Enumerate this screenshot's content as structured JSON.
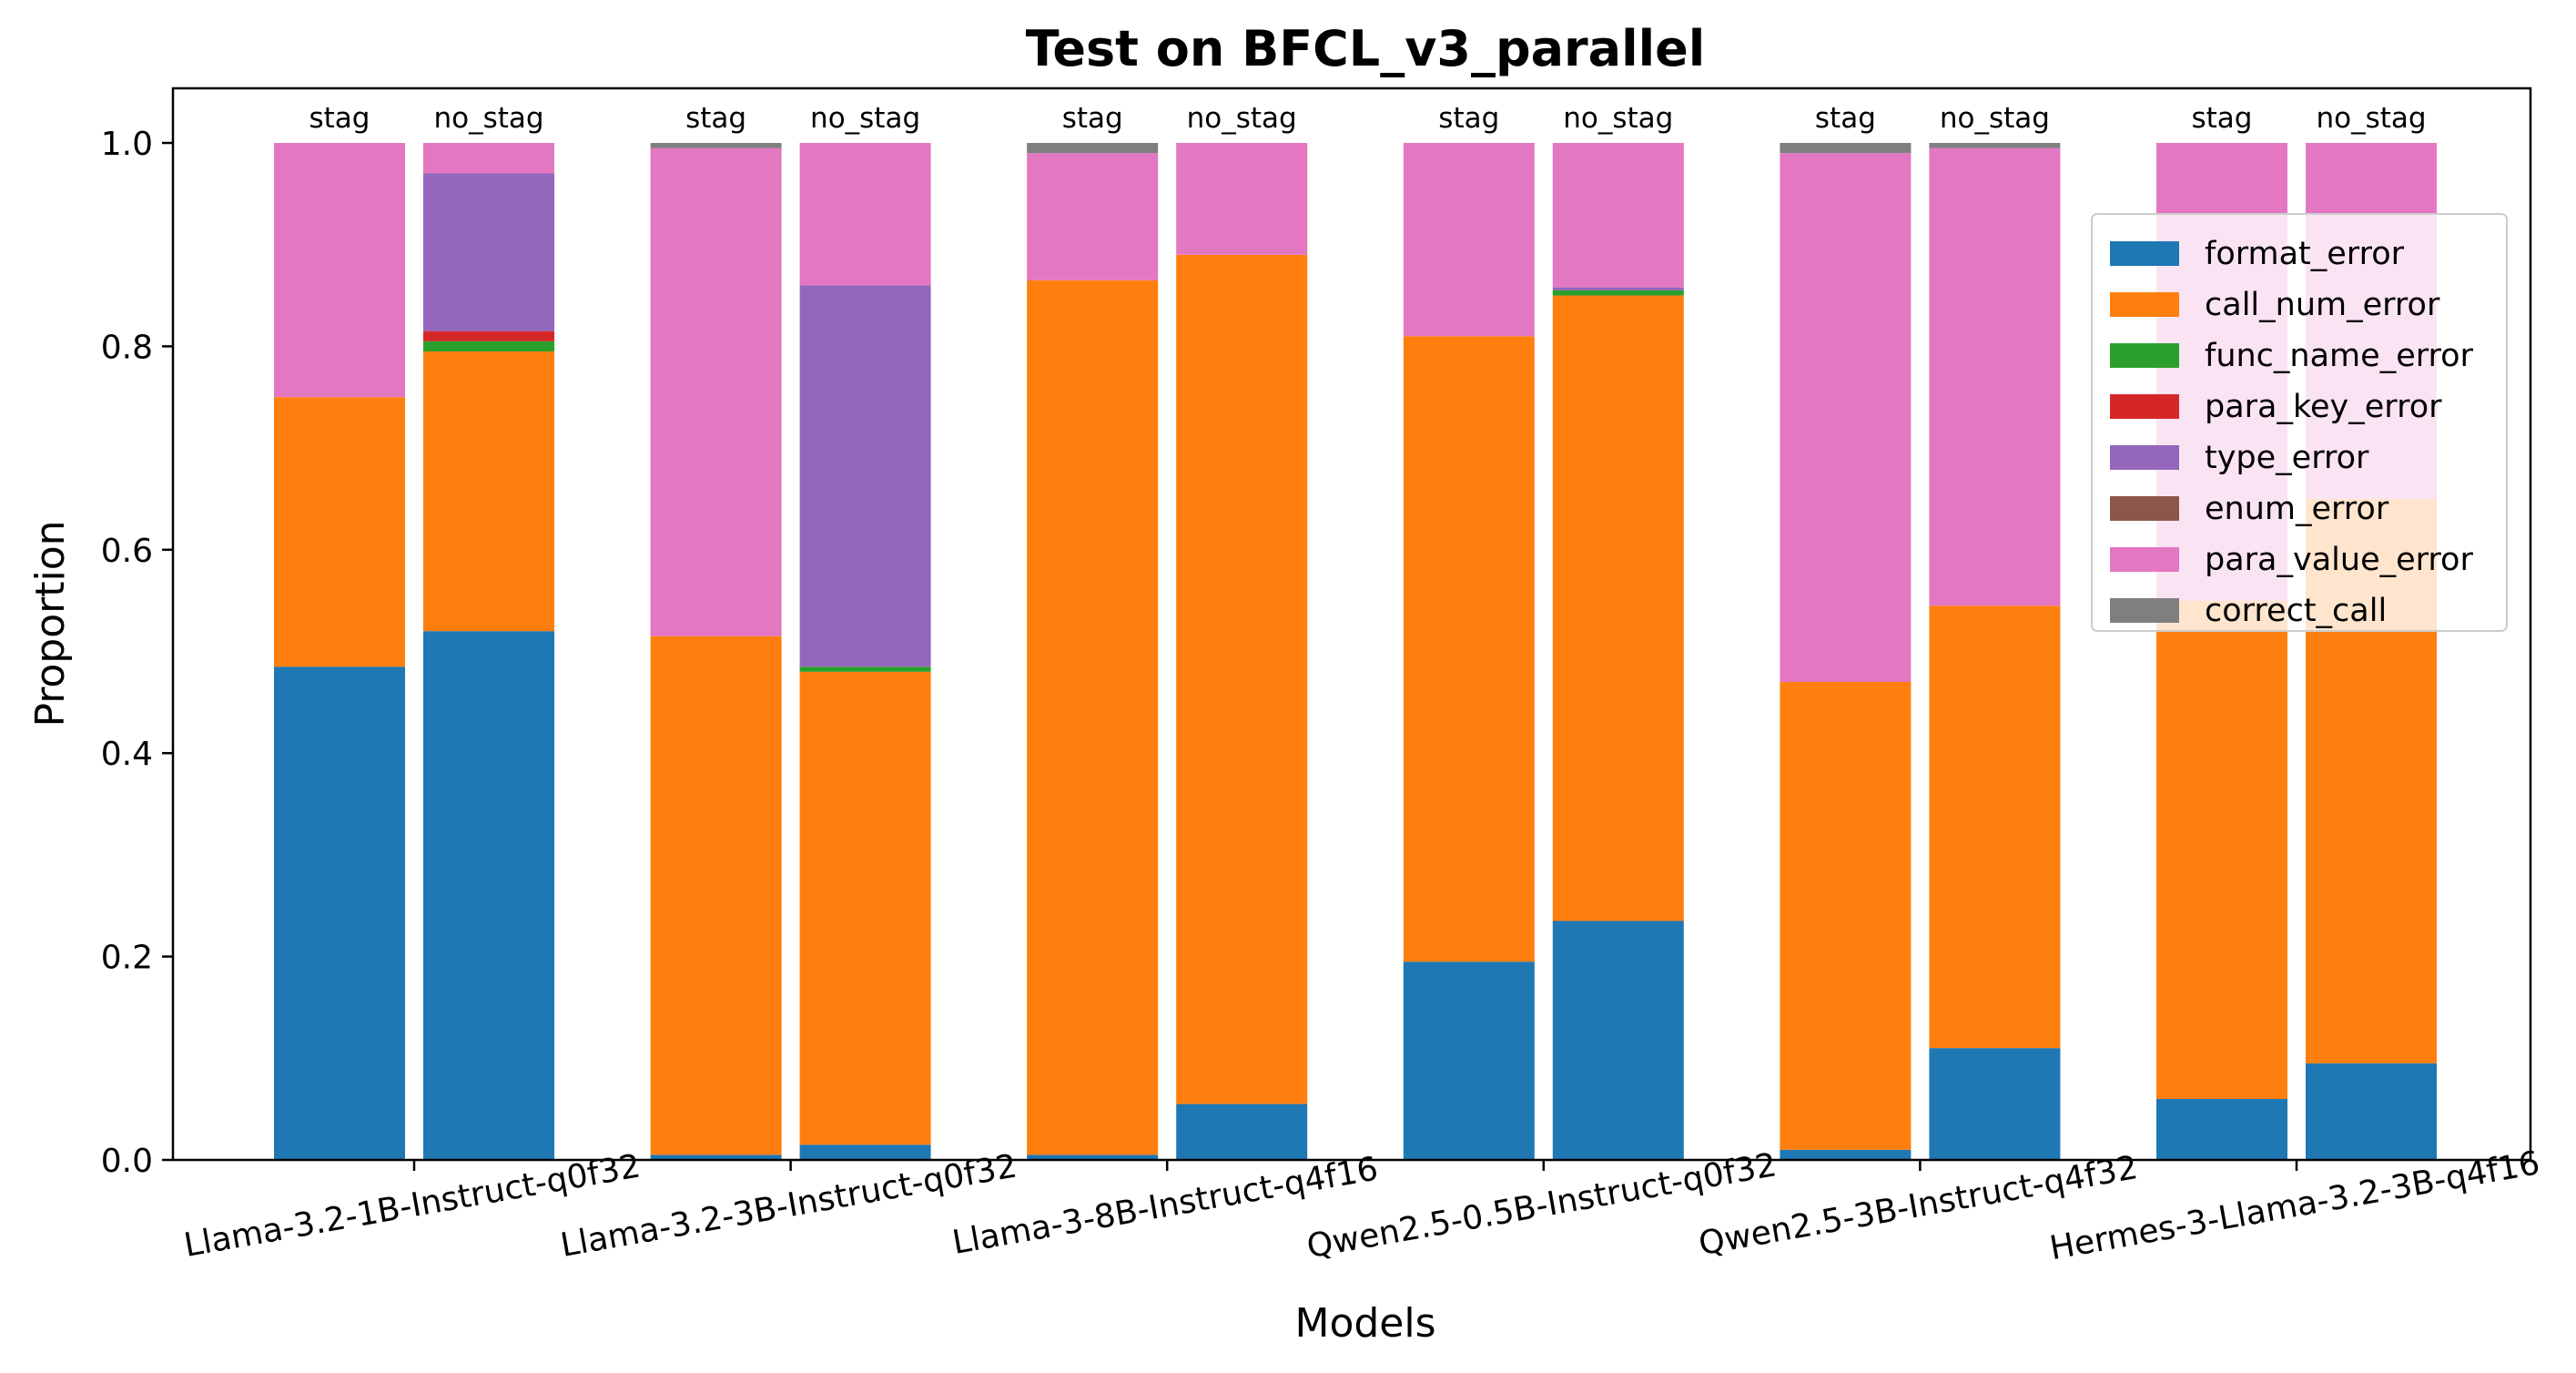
{
  "chart_data": {
    "type": "bar",
    "stacked": true,
    "title": "Test on BFCL_v3_parallel",
    "xlabel": "Models",
    "ylabel": "Proportion",
    "ylim": [
      0,
      1.05
    ],
    "yticks": [
      "0.0",
      "0.2",
      "0.4",
      "0.6",
      "0.8",
      "1.0"
    ],
    "grid": false,
    "legend_position": "top-right",
    "categories": [
      "Llama-3.2-1B-Instruct-q0f32",
      "Llama-3.2-3B-Instruct-q0f32",
      "Llama-3-8B-Instruct-q4f16",
      "Qwen2.5-0.5B-Instruct-q0f32",
      "Qwen2.5-3B-Instruct-q4f32",
      "Hermes-3-Llama-3.2-3B-q4f16"
    ],
    "bar_labels": [
      "stag",
      "no_stag"
    ],
    "series": [
      {
        "name": "format_error",
        "color": "#1f77b4",
        "stag": [
          0.485,
          0.005,
          0.005,
          0.195,
          0.01,
          0.06
        ],
        "no_stag": [
          0.52,
          0.015,
          0.055,
          0.235,
          0.11,
          0.095
        ]
      },
      {
        "name": "call_num_error",
        "color": "#ff7f0e",
        "stag": [
          0.265,
          0.51,
          0.86,
          0.615,
          0.46,
          0.49
        ],
        "no_stag": [
          0.275,
          0.465,
          0.835,
          0.615,
          0.435,
          0.555
        ]
      },
      {
        "name": "func_name_error",
        "color": "#2ca02c",
        "stag": [
          0,
          0,
          0,
          0,
          0,
          0
        ],
        "no_stag": [
          0.01,
          0.005,
          0,
          0.005,
          0,
          0
        ]
      },
      {
        "name": "para_key_error",
        "color": "#d62728",
        "stag": [
          0,
          0,
          0,
          0,
          0,
          0
        ],
        "no_stag": [
          0.01,
          0,
          0,
          0,
          0,
          0
        ]
      },
      {
        "name": "type_error",
        "color": "#9467bd",
        "stag": [
          0,
          0,
          0,
          0,
          0,
          0
        ],
        "no_stag": [
          0.155,
          0.375,
          0,
          0.003,
          0,
          0
        ]
      },
      {
        "name": "enum_error",
        "color": "#8c564b",
        "stag": [
          0,
          0,
          0,
          0,
          0,
          0
        ],
        "no_stag": [
          0,
          0,
          0,
          0,
          0,
          0
        ]
      },
      {
        "name": "para_value_error",
        "color": "#e377c2",
        "stag": [
          0.25,
          0.48,
          0.125,
          0.19,
          0.52,
          0.45
        ],
        "no_stag": [
          0.03,
          0.14,
          0.11,
          0.142,
          0.45,
          0.35
        ]
      },
      {
        "name": "correct_call",
        "color": "#7f7f7f",
        "stag": [
          0,
          0.005,
          0.01,
          0,
          0.01,
          0
        ],
        "no_stag": [
          0,
          0,
          0,
          0,
          0.005,
          0
        ]
      }
    ]
  }
}
